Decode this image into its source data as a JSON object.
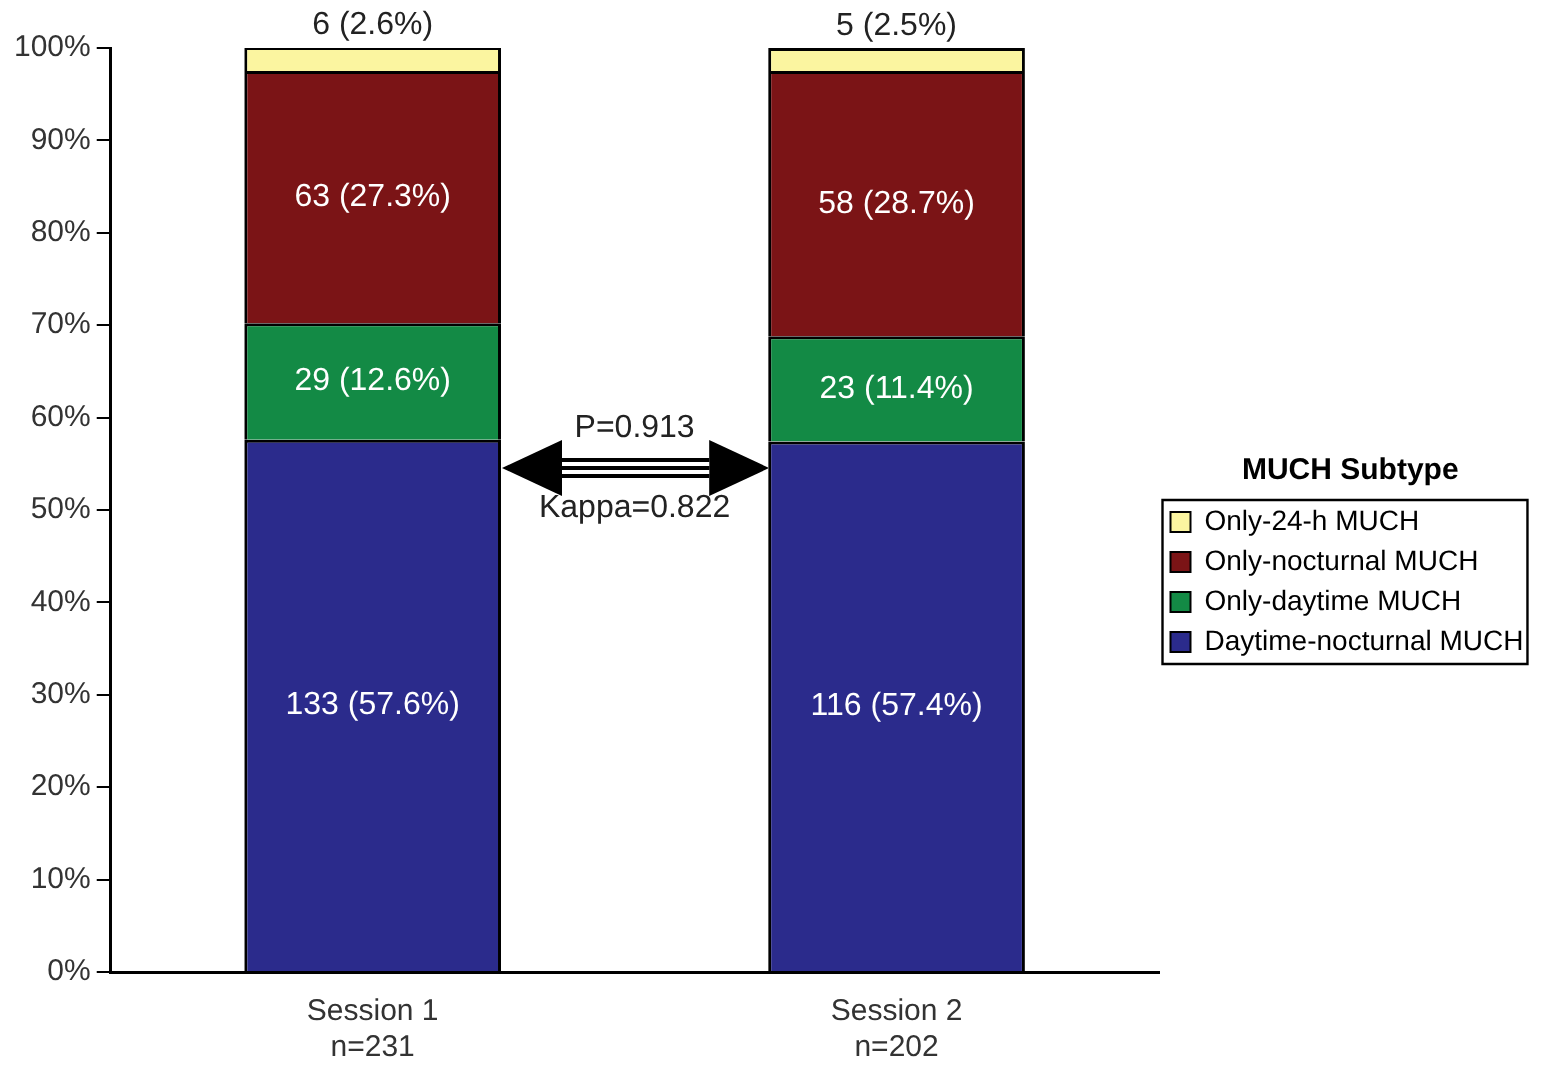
{
  "chart_data": {
    "type": "bar",
    "stacked": true,
    "categories": [
      "Session 1\nn=231",
      "Session 2\nn=202"
    ],
    "series": [
      {
        "name": "Daytime-nocturnal MUCH",
        "color": "#2b2b8c",
        "values": [
          57.6,
          57.4
        ],
        "value_labels": [
          "133 (57.6%)",
          "116 (57.4%)"
        ]
      },
      {
        "name": "Only-daytime MUCH",
        "color": "#138a45",
        "values": [
          12.6,
          11.4
        ],
        "value_labels": [
          "29 (12.6%)",
          "23 (11.4%)"
        ]
      },
      {
        "name": "Only-nocturnal MUCH",
        "color": "#7b1416",
        "values": [
          27.3,
          28.7
        ],
        "value_labels": [
          "63 (27.3%)",
          "58 (28.7%)"
        ]
      },
      {
        "name": "Only-24-h MUCH",
        "color": "#fbf5a0",
        "values": [
          2.6,
          2.5
        ],
        "value_labels": [
          "6 (2.6%)",
          "5 (2.5%)"
        ]
      }
    ],
    "ylim": [
      0,
      100
    ],
    "yticks": [
      {
        "value": 0,
        "label": "0%"
      },
      {
        "value": 10,
        "label": "10%"
      },
      {
        "value": 20,
        "label": "20%"
      },
      {
        "value": 30,
        "label": "30%"
      },
      {
        "value": 40,
        "label": "40%"
      },
      {
        "value": 50,
        "label": "50%"
      },
      {
        "value": 60,
        "label": "60%"
      },
      {
        "value": 70,
        "label": "70%"
      },
      {
        "value": 80,
        "label": "80%"
      },
      {
        "value": 90,
        "label": "90%"
      },
      {
        "value": 100,
        "label": "100%"
      }
    ],
    "legend": "right",
    "legend_title": "MUCH Subtype",
    "grid": false,
    "annotations": [
      "P=0.913",
      "Kappa=0.822"
    ]
  }
}
